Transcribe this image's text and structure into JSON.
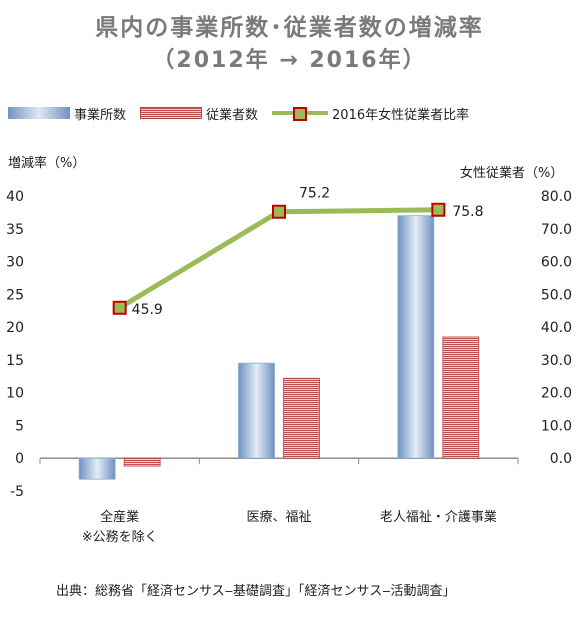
{
  "title": {
    "line1": "県内の事業所数･従業者数の増減率",
    "line2": "（2012年 → 2016年）"
  },
  "legend": {
    "establishments": "事業所数",
    "employees": "従業者数",
    "female_ratio": "2016年女性従業者比率"
  },
  "axis": {
    "left_title": "増減率（%）",
    "right_title": "女性従業者（%）"
  },
  "source": "出典：総務省「経済センサス‒基礎調査」「経済センサス‒活動調査」",
  "chart_data": {
    "type": "bar",
    "categories": [
      [
        "全産業",
        "※公務を除く"
      ],
      [
        "医療、福祉"
      ],
      [
        "老人福祉・介護事業"
      ]
    ],
    "series": [
      {
        "name": "事業所数",
        "type": "bar",
        "axis": "left",
        "values": [
          -3.2,
          14.5,
          37.0
        ],
        "color": "#7b9fd0"
      },
      {
        "name": "従業者数",
        "type": "bar",
        "axis": "left",
        "values": [
          -1.2,
          12.2,
          18.5
        ],
        "color": "#c0504d"
      },
      {
        "name": "2016年女性従業者比率",
        "type": "line",
        "axis": "right",
        "values": [
          45.9,
          75.2,
          75.8
        ],
        "labels": [
          "45.9",
          "75.2",
          "75.8"
        ],
        "color": "#9bbb59",
        "marker_edge": "#c00000"
      }
    ],
    "ylim_left": [
      -5,
      40
    ],
    "yticks_left": [
      "-5",
      "0",
      "5",
      "10",
      "15",
      "20",
      "25",
      "30",
      "35",
      "40"
    ],
    "ylim_right": [
      0,
      80
    ],
    "yticks_right": [
      "0.0",
      "10.0",
      "20.0",
      "30.0",
      "40.0",
      "50.0",
      "60.0",
      "70.0",
      "80.0"
    ],
    "grid": false,
    "legend_position": "top"
  }
}
